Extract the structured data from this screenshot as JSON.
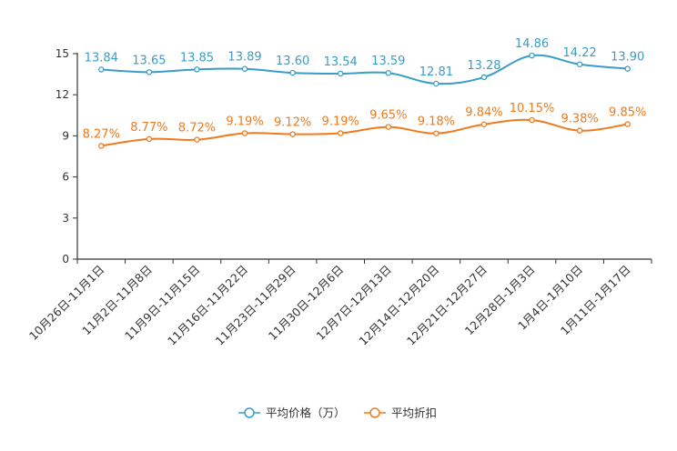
{
  "chart_data": {
    "type": "line",
    "title": "",
    "xlabel": "",
    "ylabel": "",
    "ylim": [
      0,
      15
    ],
    "yticks": [
      0,
      3,
      6,
      9,
      12,
      15
    ],
    "grid": false,
    "legend_position": "bottom-center",
    "categories": [
      "10月26日-11月1日",
      "11月2日-11月8日",
      "11月9日-11月15日",
      "11月16日-11月22日",
      "11月23日-11月29日",
      "11月30日-12月6日",
      "12月7日-12月13日",
      "12月14日-12月20日",
      "12月21日-12月27日",
      "12月28日-1月3日",
      "1月4日-1月10日",
      "1月11日-1月17日"
    ],
    "series": [
      {
        "name": "平均价格（万）",
        "color": "#3a9dc7",
        "values": [
          13.84,
          13.65,
          13.85,
          13.89,
          13.6,
          13.54,
          13.59,
          12.81,
          13.28,
          14.86,
          14.22,
          13.9
        ],
        "labels": [
          "13.84",
          "13.65",
          "13.85",
          "13.89",
          "13.60",
          "13.54",
          "13.59",
          "12.81",
          "13.28",
          "14.86",
          "14.22",
          "13.90"
        ]
      },
      {
        "name": "平均折扣",
        "color": "#f07a1d",
        "values": [
          8.27,
          8.77,
          8.72,
          9.19,
          9.12,
          9.19,
          9.65,
          9.18,
          9.84,
          10.15,
          9.38,
          9.85
        ],
        "labels": [
          "8.27%",
          "8.77%",
          "8.72%",
          "9.19%",
          "9.12%",
          "9.19%",
          "9.65%",
          "9.18%",
          "9.84%",
          "10.15%",
          "9.38%",
          "9.85%"
        ]
      }
    ]
  }
}
